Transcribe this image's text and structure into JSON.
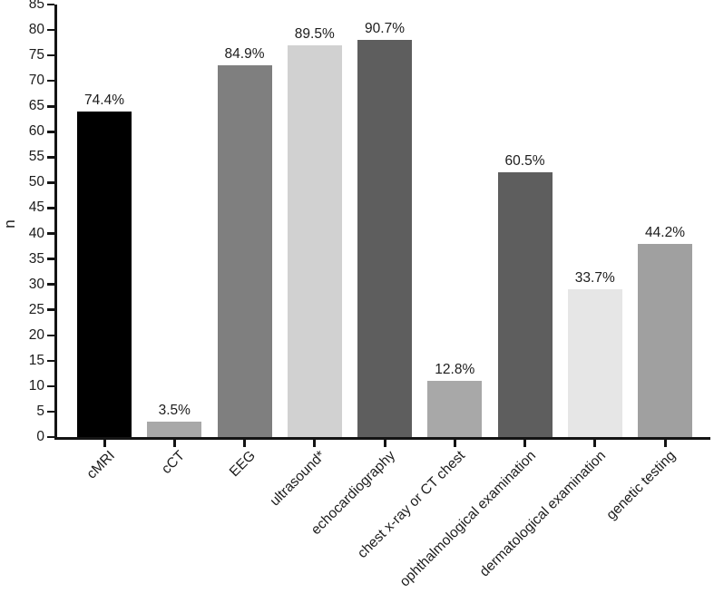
{
  "chart_data": {
    "type": "bar",
    "title": "",
    "xlabel": "",
    "ylabel": "n",
    "ylim": [
      0,
      85
    ],
    "ytick_interval": 5,
    "grid": false,
    "legend": "none",
    "categories": [
      "cMRI",
      "cCT",
      "EEG",
      "ultrasound*",
      "echocardiography",
      "chest x-ray or CT chest",
      "ophthalmological examination",
      "dermatological examination",
      "genetic testing"
    ],
    "values": [
      64,
      3,
      73,
      77,
      78,
      11,
      52,
      29,
      38
    ],
    "bar_labels": [
      "74.4%",
      "3.5%",
      "84.9%",
      "89.5%",
      "90.7%",
      "12.8%",
      "60.5%",
      "33.7%",
      "44.2%"
    ],
    "bar_colors": [
      "#000000",
      "#a8a8a8",
      "#7f7f7f",
      "#d1d1d1",
      "#5e5e5e",
      "#a8a8a8",
      "#5e5e5e",
      "#e6e6e6",
      "#a0a0a0"
    ],
    "axis_color": "#141414",
    "text_color": "#1c1c1c"
  }
}
